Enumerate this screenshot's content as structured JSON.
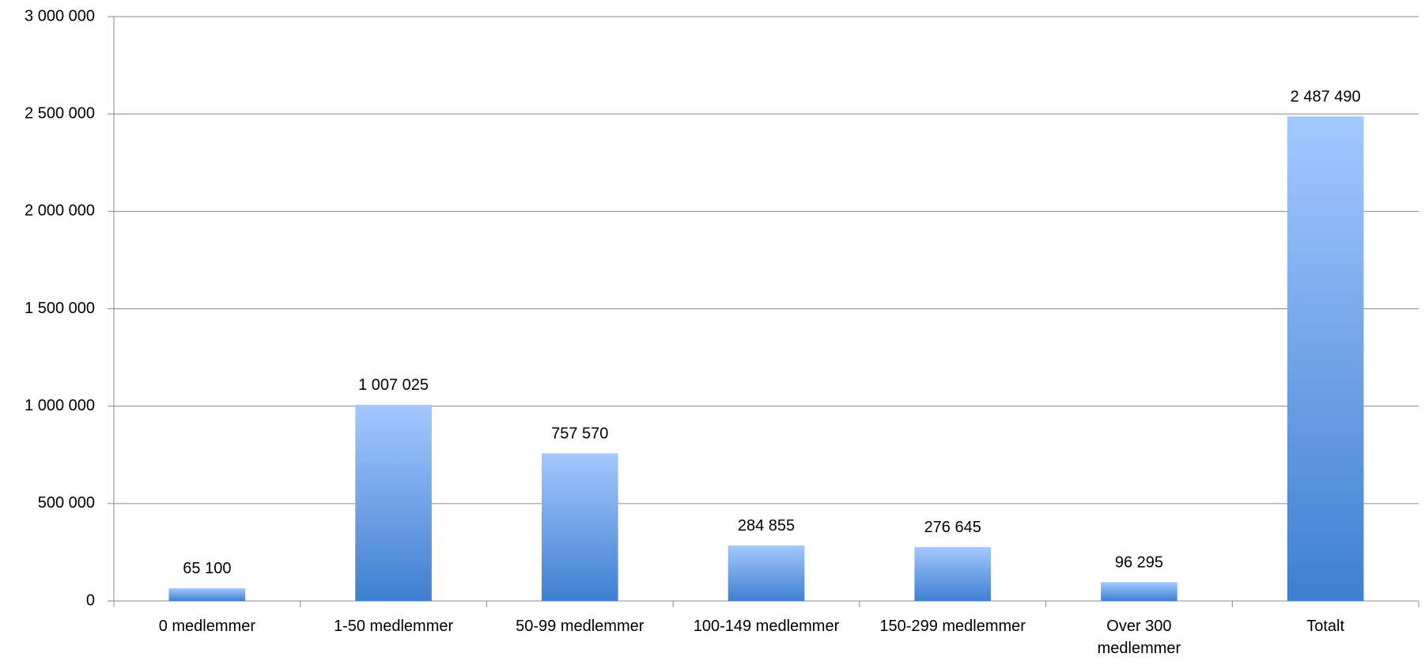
{
  "chart_data": {
    "type": "bar",
    "categories": [
      "0 medlemmer",
      "1-50 medlemmer",
      "50-99 medlemmer",
      "100-149 medlemmer",
      "150-299 medlemmer",
      "Over 300 medlemmer",
      "Totalt"
    ],
    "values": [
      65100,
      1007025,
      757570,
      284855,
      276645,
      96295,
      2487490
    ],
    "value_labels": [
      "65 100",
      "1 007 025",
      "757 570",
      "284 855",
      "276 645",
      "96 295",
      "2 487 490"
    ],
    "color": "#3f7fd0",
    "ylim": [
      0,
      3000000
    ],
    "yticks": [
      {
        "value": 0,
        "label": "0"
      },
      {
        "value": 500000,
        "label": "500 000"
      },
      {
        "value": 1000000,
        "label": "1 000 000"
      },
      {
        "value": 1500000,
        "label": "1 500 000"
      },
      {
        "value": 2000000,
        "label": "2 000 000"
      },
      {
        "value": 2500000,
        "label": "2 500 000"
      },
      {
        "value": 3000000,
        "label": "3 000 000"
      }
    ],
    "grid": true
  }
}
